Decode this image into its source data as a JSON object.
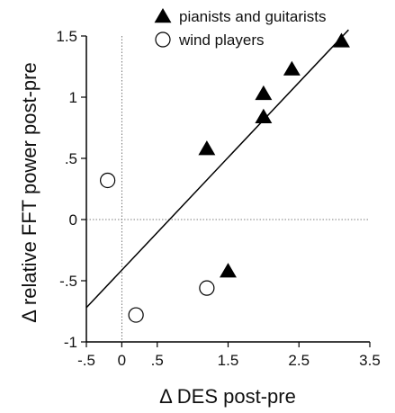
{
  "chart_data": {
    "type": "scatter",
    "xlabel": "Δ DES post-pre",
    "ylabel": "Δ relative FFT power post-pre",
    "xlim": [
      -0.5,
      3.5
    ],
    "ylim": [
      -1.0,
      1.5
    ],
    "x_ticks": [
      -0.5,
      0,
      0.5,
      1.5,
      2.5,
      3.5
    ],
    "x_tick_labels": [
      "-.5",
      "0",
      ".5",
      "1.5",
      "2.5",
      "3.5"
    ],
    "y_ticks": [
      1.5,
      1.0,
      0.5,
      0,
      -0.5,
      -1.0
    ],
    "y_tick_labels": [
      "1.5",
      "1",
      ".5",
      "0",
      "-.5",
      "-1"
    ],
    "legend_position": "top",
    "series": [
      {
        "name": "pianists and guitarists",
        "marker": "filled-triangle",
        "color": "#000000",
        "points": [
          {
            "x": 1.2,
            "y": 0.58
          },
          {
            "x": 1.5,
            "y": -0.42
          },
          {
            "x": 2.0,
            "y": 1.03
          },
          {
            "x": 2.0,
            "y": 0.84
          },
          {
            "x": 2.4,
            "y": 1.23
          },
          {
            "x": 3.1,
            "y": 1.46
          }
        ]
      },
      {
        "name": "wind players",
        "marker": "open-circle",
        "color": "#000000",
        "points": [
          {
            "x": -0.2,
            "y": 0.32
          },
          {
            "x": 0.2,
            "y": -0.78
          },
          {
            "x": 1.2,
            "y": -0.56
          }
        ]
      }
    ],
    "regression_line": {
      "x": [
        -0.5,
        3.2
      ],
      "y": [
        -0.72,
        1.55
      ]
    },
    "reference_lines": {
      "vertical_x": 0,
      "horizontal_y": 0
    }
  }
}
